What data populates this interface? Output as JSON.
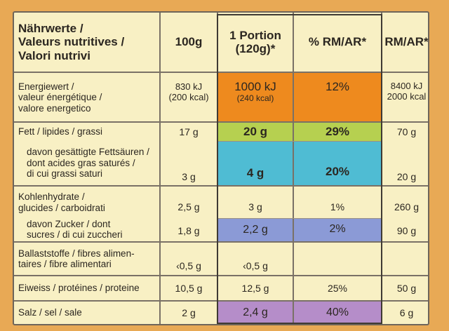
{
  "table": {
    "header": {
      "label_de": "Nährwerte /",
      "label_fr": "Valeurs nutritives /",
      "label_it": "Valori nutrivi",
      "col_100g": "100g",
      "col_portion_line1": "1 Portion",
      "col_portion_line2": "(120g)*",
      "col_pct": "% RM/AR*",
      "col_rm": "RM/AR*"
    },
    "rows": {
      "energy": {
        "label": [
          "Energiewert /",
          "valeur énergétique /",
          "valore energetico"
        ],
        "per100_kj": "830 kJ",
        "per100_kcal": "(200 kcal)",
        "portion_kj": "1000 kJ",
        "portion_kcal": "(240 kcal)",
        "pct": "12%",
        "rm_kj": "8400 kJ",
        "rm_kcal": "2000 kcal"
      },
      "fat": {
        "label": "Fett / lipides  / grassi",
        "per100": "17 g",
        "portion": "20 g",
        "pct": "29%",
        "rm": "70 g"
      },
      "saturates": {
        "label": [
          "davon gesättigte Fettsäuren /",
          "dont acides gras saturés /",
          "di cui grassi saturi"
        ],
        "per100": "3 g",
        "portion": "4 g",
        "pct": "20%",
        "rm": "20 g"
      },
      "carbs": {
        "label": [
          "Kohlenhydrate /",
          "glucides / carboidrati"
        ],
        "per100": "2,5 g",
        "portion": "3 g",
        "pct": "1%",
        "rm": "260 g"
      },
      "sugars": {
        "label": [
          "davon Zucker / dont",
          "sucres / di cui zuccheri"
        ],
        "per100": "1,8 g",
        "portion": "2,2 g",
        "pct": "2%",
        "rm": "90 g"
      },
      "fibre": {
        "label": [
          "Ballaststoffe / fibres alimen-",
          "taires / fibre alimentari"
        ],
        "per100": "‹0,5 g",
        "portion": "‹0,5 g"
      },
      "protein": {
        "label": "Eiweiss / protéines / proteine",
        "per100": "10,5 g",
        "portion": "12,5 g",
        "pct": "25%",
        "rm": "50 g"
      },
      "salt": {
        "label": "Salz / sel / sale",
        "per100": "2 g",
        "portion": "2,4 g",
        "pct": "40%",
        "rm": "6 g"
      }
    }
  },
  "colors": {
    "background": "#e8a955",
    "table": "#f8f0c4",
    "energy": "#ee8a1e",
    "fat": "#b6d050",
    "saturates": "#4fbcd3",
    "sugars": "#8b9ad6",
    "salt": "#b58dc9"
  }
}
